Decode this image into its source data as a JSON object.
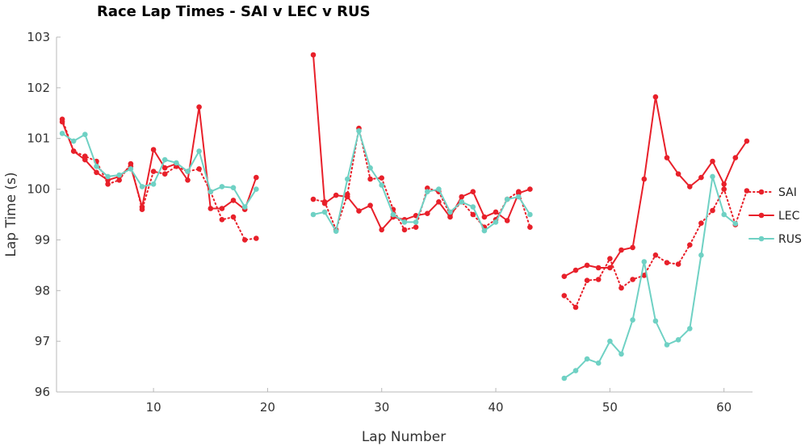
{
  "chart_data": {
    "type": "line",
    "title": "Race Lap Times - SAI v LEC v RUS",
    "xlabel": "Lap Number",
    "ylabel": "Lap Time (s)",
    "xlim": [
      1.5,
      62.5
    ],
    "ylim": [
      96,
      103
    ],
    "xticks": [
      10,
      20,
      30,
      40,
      50,
      60
    ],
    "yticks": [
      96,
      97,
      98,
      99,
      100,
      101,
      102,
      103
    ],
    "legend_position": "right",
    "series": [
      {
        "name": "SAI",
        "color": "#e8202a",
        "line_style": "dotted",
        "points": [
          [
            2,
            101.38
          ],
          [
            3,
            100.75
          ],
          [
            4,
            100.65
          ],
          [
            5,
            100.55
          ],
          [
            6,
            100.1
          ],
          [
            7,
            100.18
          ],
          [
            8,
            100.5
          ],
          [
            9,
            99.6
          ],
          [
            10,
            100.35
          ],
          [
            11,
            100.3
          ],
          [
            12,
            100.45
          ],
          [
            13,
            100.35
          ],
          [
            14,
            100.4
          ],
          [
            15,
            99.95
          ],
          [
            16,
            99.4
          ],
          [
            17,
            99.45
          ],
          [
            18,
            99.0
          ],
          [
            19,
            99.03
          ],
          [
            24,
            99.8
          ],
          [
            25,
            99.75
          ],
          [
            26,
            99.2
          ],
          [
            27,
            99.9
          ],
          [
            28,
            101.2
          ],
          [
            29,
            100.2
          ],
          [
            30,
            100.22
          ],
          [
            31,
            99.6
          ],
          [
            32,
            99.2
          ],
          [
            33,
            99.25
          ],
          [
            34,
            100.02
          ],
          [
            35,
            99.95
          ],
          [
            36,
            99.5
          ],
          [
            37,
            99.75
          ],
          [
            38,
            99.5
          ],
          [
            39,
            99.25
          ],
          [
            40,
            99.4
          ],
          [
            41,
            99.8
          ],
          [
            42,
            99.95
          ],
          [
            43,
            99.25
          ],
          [
            46,
            97.9
          ],
          [
            47,
            97.67
          ],
          [
            48,
            98.2
          ],
          [
            49,
            98.22
          ],
          [
            50,
            98.63
          ],
          [
            51,
            98.05
          ],
          [
            52,
            98.22
          ],
          [
            53,
            98.3
          ],
          [
            54,
            98.7
          ],
          [
            55,
            98.55
          ],
          [
            56,
            98.52
          ],
          [
            57,
            98.9
          ],
          [
            58,
            99.33
          ],
          [
            59,
            99.58
          ],
          [
            60,
            100.0
          ],
          [
            61,
            99.3
          ],
          [
            62,
            99.97
          ]
        ]
      },
      {
        "name": "LEC",
        "color": "#e8202a",
        "line_style": "solid",
        "points": [
          [
            2,
            101.33
          ],
          [
            3,
            100.75
          ],
          [
            4,
            100.58
          ],
          [
            5,
            100.33
          ],
          [
            6,
            100.18
          ],
          [
            7,
            100.25
          ],
          [
            8,
            100.45
          ],
          [
            9,
            99.65
          ],
          [
            10,
            100.78
          ],
          [
            11,
            100.42
          ],
          [
            12,
            100.5
          ],
          [
            13,
            100.18
          ],
          [
            14,
            101.62
          ],
          [
            15,
            99.62
          ],
          [
            16,
            99.62
          ],
          [
            17,
            99.78
          ],
          [
            18,
            99.6
          ],
          [
            19,
            100.23
          ],
          [
            24,
            102.65
          ],
          [
            25,
            99.72
          ],
          [
            26,
            99.88
          ],
          [
            27,
            99.85
          ],
          [
            28,
            99.57
          ],
          [
            29,
            99.68
          ],
          [
            30,
            99.2
          ],
          [
            31,
            99.45
          ],
          [
            32,
            99.4
          ],
          [
            33,
            99.48
          ],
          [
            34,
            99.52
          ],
          [
            35,
            99.75
          ],
          [
            36,
            99.45
          ],
          [
            37,
            99.85
          ],
          [
            38,
            99.95
          ],
          [
            39,
            99.45
          ],
          [
            40,
            99.55
          ],
          [
            41,
            99.38
          ],
          [
            42,
            99.92
          ],
          [
            43,
            100.0
          ],
          [
            46,
            98.28
          ],
          [
            47,
            98.4
          ],
          [
            48,
            98.5
          ],
          [
            49,
            98.45
          ],
          [
            50,
            98.45
          ],
          [
            51,
            98.8
          ],
          [
            52,
            98.85
          ],
          [
            53,
            100.2
          ],
          [
            54,
            101.82
          ],
          [
            55,
            100.62
          ],
          [
            56,
            100.3
          ],
          [
            57,
            100.05
          ],
          [
            58,
            100.23
          ],
          [
            59,
            100.55
          ],
          [
            60,
            100.1
          ],
          [
            61,
            100.62
          ],
          [
            62,
            100.95
          ]
        ]
      },
      {
        "name": "RUS",
        "color": "#6fd1c4",
        "line_style": "solid",
        "points": [
          [
            2,
            101.1
          ],
          [
            3,
            100.95
          ],
          [
            4,
            101.08
          ],
          [
            5,
            100.45
          ],
          [
            6,
            100.25
          ],
          [
            7,
            100.28
          ],
          [
            8,
            100.4
          ],
          [
            9,
            100.05
          ],
          [
            10,
            100.1
          ],
          [
            11,
            100.58
          ],
          [
            12,
            100.52
          ],
          [
            13,
            100.35
          ],
          [
            14,
            100.75
          ],
          [
            15,
            99.95
          ],
          [
            16,
            100.05
          ],
          [
            17,
            100.03
          ],
          [
            18,
            99.65
          ],
          [
            19,
            100.0
          ],
          [
            24,
            99.5
          ],
          [
            25,
            99.55
          ],
          [
            26,
            99.17
          ],
          [
            27,
            100.2
          ],
          [
            28,
            101.15
          ],
          [
            29,
            100.42
          ],
          [
            30,
            100.08
          ],
          [
            31,
            99.5
          ],
          [
            32,
            99.35
          ],
          [
            33,
            99.35
          ],
          [
            34,
            99.95
          ],
          [
            35,
            100.0
          ],
          [
            36,
            99.55
          ],
          [
            37,
            99.75
          ],
          [
            38,
            99.65
          ],
          [
            39,
            99.18
          ],
          [
            40,
            99.35
          ],
          [
            41,
            99.8
          ],
          [
            42,
            99.85
          ],
          [
            43,
            99.5
          ],
          [
            46,
            96.27
          ],
          [
            47,
            96.42
          ],
          [
            48,
            96.65
          ],
          [
            49,
            96.57
          ],
          [
            50,
            97.0
          ],
          [
            51,
            96.75
          ],
          [
            52,
            97.42
          ],
          [
            53,
            98.57
          ],
          [
            54,
            97.4
          ],
          [
            55,
            96.93
          ],
          [
            56,
            97.03
          ],
          [
            57,
            97.25
          ],
          [
            58,
            98.7
          ],
          [
            59,
            100.25
          ],
          [
            60,
            99.5
          ],
          [
            61,
            99.32
          ]
        ]
      }
    ]
  }
}
